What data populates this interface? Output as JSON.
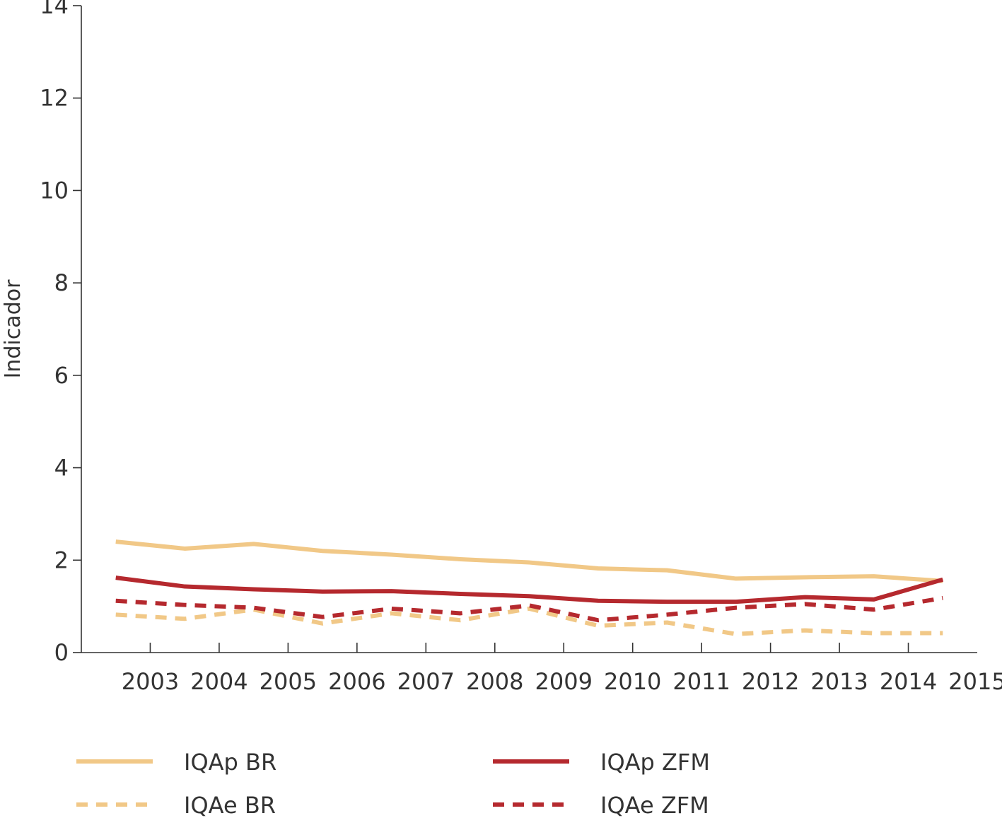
{
  "chart_data": {
    "type": "line",
    "ylabel": "Indicador",
    "xlabel": "",
    "ylim": [
      0,
      14
    ],
    "yticks": [
      0,
      2,
      4,
      6,
      8,
      10,
      12,
      14
    ],
    "ytick_labels": [
      "0",
      "2",
      "4",
      "6",
      "8",
      "10",
      "12",
      "14"
    ],
    "xtick_labels": [
      "2003",
      "2004",
      "2005",
      "2006",
      "2007",
      "2008",
      "2009",
      "2010",
      "2011",
      "2012",
      "2013",
      "2014",
      "2015"
    ],
    "x": [
      2003,
      2004,
      2005,
      2006,
      2007,
      2008,
      2009,
      2010,
      2011,
      2012,
      2013,
      2014,
      2015
    ],
    "xlim": [
      2002.5,
      2015.5
    ],
    "grid": false,
    "legend_position": "bottom",
    "series": [
      {
        "name": "IQAp BR",
        "color": "#f1c887",
        "dashed": false,
        "values": [
          2.4,
          2.25,
          2.35,
          2.2,
          2.12,
          2.02,
          1.95,
          1.82,
          1.78,
          1.6,
          1.63,
          1.65,
          1.55
        ]
      },
      {
        "name": "IQAp ZFM",
        "color": "#b5292e",
        "dashed": false,
        "values": [
          1.62,
          1.43,
          1.37,
          1.32,
          1.33,
          1.27,
          1.22,
          1.12,
          1.1,
          1.1,
          1.2,
          1.15,
          1.58
        ]
      },
      {
        "name": "IQAe BR",
        "color": "#f1c887",
        "dashed": true,
        "values": [
          0.82,
          0.73,
          0.93,
          0.63,
          0.85,
          0.7,
          0.95,
          0.58,
          0.65,
          0.4,
          0.48,
          0.42,
          0.42
        ]
      },
      {
        "name": "IQAe ZFM",
        "color": "#b5292e",
        "dashed": true,
        "values": [
          1.12,
          1.03,
          0.97,
          0.77,
          0.95,
          0.85,
          1.02,
          0.7,
          0.82,
          0.97,
          1.05,
          0.93,
          1.18
        ]
      }
    ],
    "legend": {
      "items": [
        "IQAp BR",
        "IQAp ZFM",
        "IQAe BR",
        "IQAe ZFM"
      ]
    }
  }
}
